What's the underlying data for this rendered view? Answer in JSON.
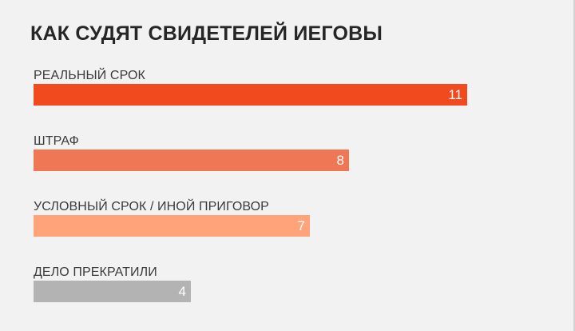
{
  "chart_data": {
    "type": "bar",
    "orientation": "horizontal",
    "title": "КАК СУДЯТ СВИДЕТЕЛЕЙ ИЕГОВЫ",
    "categories": [
      "РЕАЛЬНЫЙ СРОК",
      "ШТРАФ",
      "УСЛОВНЫЙ СРОК / ИНОЙ ПРИГОВОР",
      "ДЕЛО ПРЕКРАТИЛИ"
    ],
    "values": [
      11,
      8,
      7,
      4
    ],
    "colors": [
      "#f04a1e",
      "#f07755",
      "#ffa47a",
      "#b3b3b3"
    ],
    "xlim": [
      0,
      11
    ],
    "grid": false,
    "legend": "none",
    "data_labels": true
  }
}
